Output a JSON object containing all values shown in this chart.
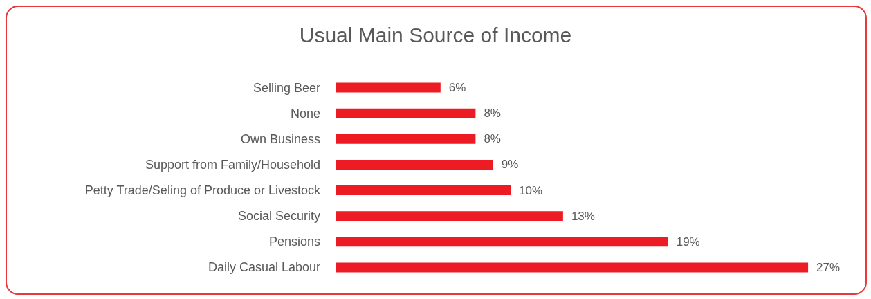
{
  "chart_data": {
    "type": "bar",
    "orientation": "horizontal",
    "title": "Usual Main Source of Income",
    "categories": [
      "Selling Beer",
      "None",
      "Own Business",
      "Support from Family/Household",
      "Petty Trade/Seling of Produce or Livestock",
      "Social Security",
      "Pensions",
      "Daily Casual Labour"
    ],
    "values": [
      6,
      8,
      8,
      9,
      10,
      13,
      19,
      27
    ],
    "value_labels": [
      "6%",
      "8%",
      "8%",
      "9%",
      "10%",
      "13%",
      "19%",
      "27%"
    ],
    "color": "#ed1c24"
  }
}
